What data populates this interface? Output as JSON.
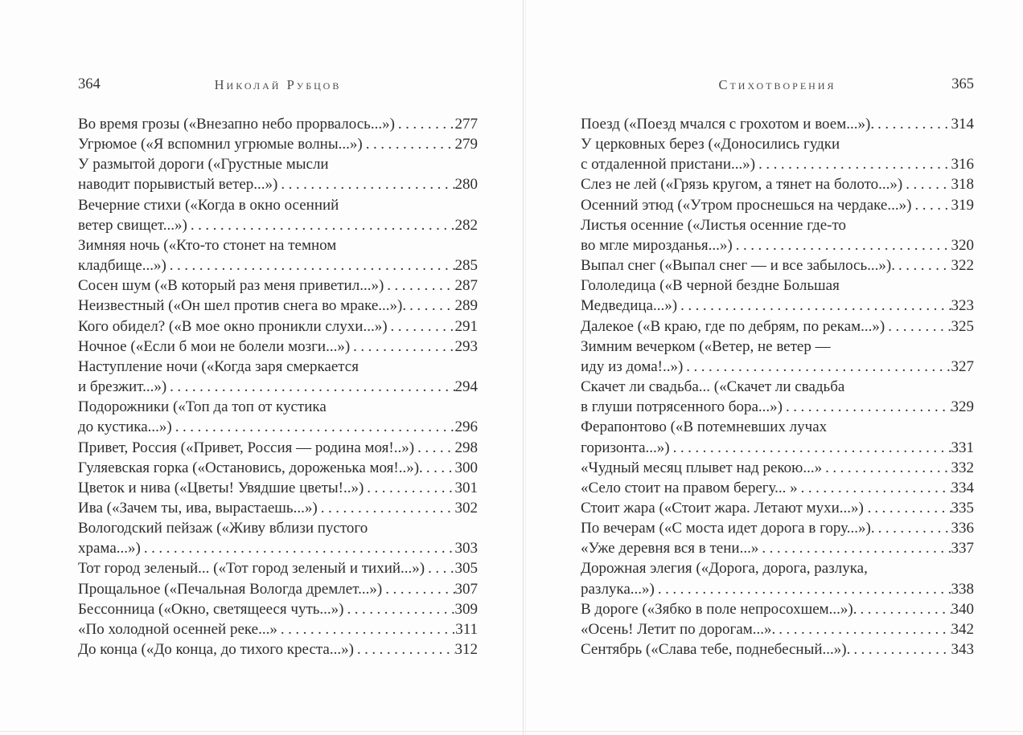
{
  "book": {
    "left_page": {
      "page_number": "364",
      "running_header": "Николай Рубцов",
      "entries": [
        {
          "text": "Во время грозы («Внезапно небо прорвалось...»)",
          "page": "277"
        },
        {
          "text": "Угрюмое («Я вспомнил угрюмые волны...»)",
          "page": "279"
        },
        {
          "text": "У размытой дороги («Грустные мысли",
          "page": null
        },
        {
          "text": "наводит порывистый ветер...»)",
          "page": "280"
        },
        {
          "text": "Вечерние стихи («Когда в окно осенний",
          "page": null
        },
        {
          "text": "ветер свищет...»)",
          "page": "282"
        },
        {
          "text": "Зимняя ночь («Кто-то стонет на темном",
          "page": null
        },
        {
          "text": "кладбище...»)",
          "page": "285"
        },
        {
          "text": "Сосен шум («В который раз меня приветил...»)",
          "page": "287"
        },
        {
          "text": "Неизвестный («Он шел против снега во мраке...»).",
          "page": "289"
        },
        {
          "text": "Кого обидел? («В мое окно проникли слухи...»)",
          "page": "291"
        },
        {
          "text": "Ночное («Если б мои не болели мозги...»)",
          "page": "293"
        },
        {
          "text": "Наступление ночи («Когда заря смеркается",
          "page": null
        },
        {
          "text": "и брезжит...»)",
          "page": "294"
        },
        {
          "text": "Подорожники («Топ да топ от кустика",
          "page": null
        },
        {
          "text": "до кустика...»)",
          "page": "296"
        },
        {
          "text": "Привет, Россия («Привет, Россия — родина моя!..»)",
          "page": "298"
        },
        {
          "text": "Гуляевская горка («Остановись, дороженька моя!..»).",
          "page": "300"
        },
        {
          "text": "Цветок и нива («Цветы! Увядшие цветы!..»)",
          "page": "301"
        },
        {
          "text": "Ива («Зачем ты, ива, вырастаешь...»)",
          "page": "302"
        },
        {
          "text": "Вологодский пейзаж («Живу вблизи пустого",
          "page": null
        },
        {
          "text": "храма...»)",
          "page": "303"
        },
        {
          "text": "Тот город зеленый... («Тот город зеленый и тихий...»)",
          "page": "305"
        },
        {
          "text": "Прощальное («Печальная Вологда дремлет...»)",
          "page": "307"
        },
        {
          "text": "Бессонница («Окно, светящееся чуть...»)",
          "page": "309"
        },
        {
          "text": "«По холодной осенней реке...»",
          "page": "311"
        },
        {
          "text": "До конца («До конца, до тихого креста...»)",
          "page": "312"
        }
      ]
    },
    "right_page": {
      "page_number": "365",
      "running_header": "Стихотворения",
      "entries": [
        {
          "text": "Поезд («Поезд мчался с грохотом и воем...»).",
          "page": "314"
        },
        {
          "text": "У церковных берез («Доносились гудки",
          "page": null
        },
        {
          "text": "с отдаленной пристани...»)",
          "page": "316"
        },
        {
          "text": "Слез не лей («Грязь кругом, а тянет на болото...»)",
          "page": "318"
        },
        {
          "text": "Осенний этюд («Утром проснешься на чердаке...»)",
          "page": "319"
        },
        {
          "text": "Листья осенние («Листья осенние где-то",
          "page": null
        },
        {
          "text": "во мгле мирозданья...»)",
          "page": "320"
        },
        {
          "text": "Выпал снег («Выпал снег — и все забылось...»).",
          "page": "322"
        },
        {
          "text": "Гололедица («В черной бездне Большая",
          "page": null
        },
        {
          "text": "Медведица...»)",
          "page": "323"
        },
        {
          "text": "Далекое («В краю, где по дебрям, по рекам...»)",
          "page": "325"
        },
        {
          "text": "Зимним вечерком («Ветер, не ветер —",
          "page": null
        },
        {
          "text": "иду из дома!..»)",
          "page": "327"
        },
        {
          "text": "Скачет ли свадьба... («Скачет ли свадьба",
          "page": null
        },
        {
          "text": "в глуши потрясенного бора...»)",
          "page": "329"
        },
        {
          "text": "Ферапонтово («В потемневших лучах",
          "page": null
        },
        {
          "text": "горизонта...»)",
          "page": "331"
        },
        {
          "text": "«Чудный месяц плывет над рекою...»",
          "page": "332"
        },
        {
          "text": "«Село стоит на правом берегу... »",
          "page": "334"
        },
        {
          "text": "Стоит жара («Стоит жара. Летают мухи...») .",
          "page": "335"
        },
        {
          "text": "По вечерам («С моста идет дорога в гору...»).",
          "page": "336"
        },
        {
          "text": "«Уже деревня вся в тени...»",
          "page": "337"
        },
        {
          "text": "Дорожная элегия («Дорога, дорога, разлука,",
          "page": null
        },
        {
          "text": "разлука...»)",
          "page": "338"
        },
        {
          "text": "В дороге («Зябко в поле непросохшем...»).",
          "page": "340"
        },
        {
          "text": "«Осень! Летит по дорогам...».",
          "page": "342"
        },
        {
          "text": "Сентябрь («Слава тебе, поднебесный...»).",
          "page": "343"
        }
      ]
    }
  }
}
